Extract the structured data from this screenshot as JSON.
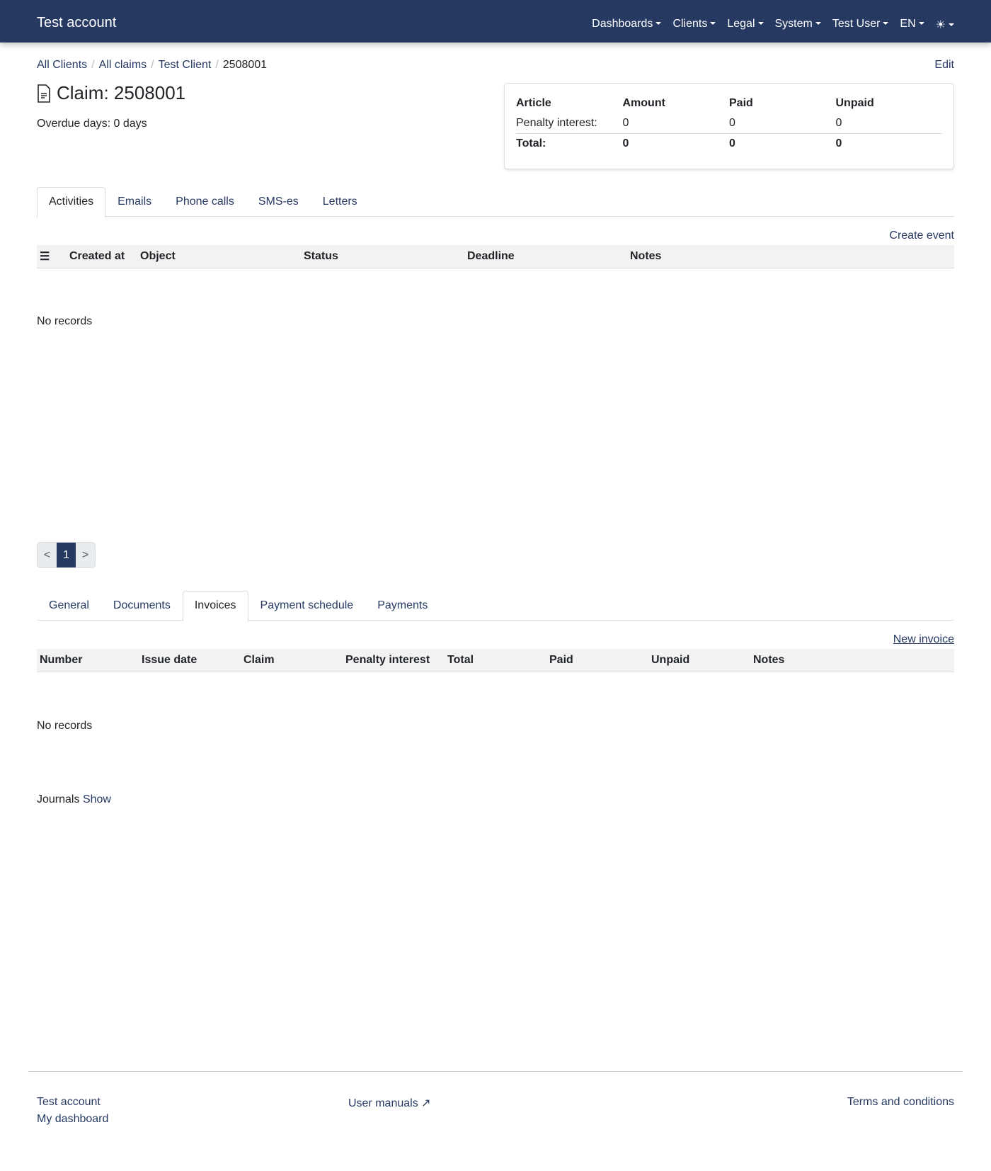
{
  "nav": {
    "brand": "Test account",
    "items": [
      "Dashboards",
      "Clients",
      "Legal",
      "System",
      "Test User",
      "EN"
    ],
    "theme_icon": "sun-icon"
  },
  "breadcrumb": [
    "All Clients",
    "All claims",
    "Test Client",
    "2508001"
  ],
  "edit_label": "Edit",
  "claim": {
    "title": "Claim: 2508001",
    "overdue": "Overdue days: 0 days"
  },
  "summary": {
    "headers": [
      "Article",
      "Amount",
      "Paid",
      "Unpaid"
    ],
    "rows": [
      [
        "Penalty interest:",
        "0",
        "0",
        "0"
      ]
    ],
    "total": [
      "Total:",
      "0",
      "0",
      "0"
    ]
  },
  "activity_tabs": [
    "Activities",
    "Emails",
    "Phone calls",
    "SMS-es",
    "Letters"
  ],
  "activities": {
    "create_label": "Create event",
    "columns": [
      "Created at",
      "Object",
      "Status",
      "Deadline",
      "Notes"
    ],
    "empty": "No records"
  },
  "pagination": {
    "prev": "<",
    "current": "1",
    "next": ">"
  },
  "claim_tabs": [
    "General",
    "Documents",
    "Invoices",
    "Payment schedule",
    "Payments"
  ],
  "invoices": {
    "create_label": "New invoice",
    "columns": [
      "Number",
      "Issue date",
      "Claim",
      "Penalty interest",
      "Total",
      "Paid",
      "Unpaid",
      "Notes"
    ],
    "empty": "No records"
  },
  "journals": {
    "label": "Journals",
    "toggle": "Show"
  },
  "footer": {
    "left": [
      "Test account",
      "My dashboard"
    ],
    "center": "User manuals",
    "right": "Terms and conditions"
  }
}
